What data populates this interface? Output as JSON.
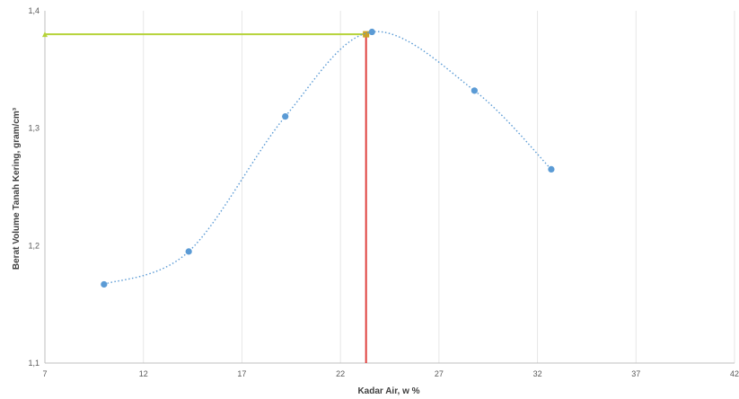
{
  "chart_data": {
    "type": "scatter",
    "title": "",
    "xlabel": "Kadar Air, w %",
    "ylabel": "Berat Volume Tanah Kering, gram/cm³",
    "xlim": [
      7,
      42
    ],
    "ylim": [
      1.1,
      1.4
    ],
    "x_ticks": [
      "7",
      "12",
      "17",
      "22",
      "27",
      "32",
      "37",
      "42"
    ],
    "y_ticks": [
      "1,1",
      "1,2",
      "1,3",
      "1,4"
    ],
    "grid": "vertical",
    "legend": "none",
    "series": [
      {
        "points": [
          {
            "x": 10.0,
            "y": 1.167
          },
          {
            "x": 14.3,
            "y": 1.195
          },
          {
            "x": 19.2,
            "y": 1.31
          },
          {
            "x": 23.6,
            "y": 1.382
          },
          {
            "x": 28.8,
            "y": 1.332
          },
          {
            "x": 32.7,
            "y": 1.265
          }
        ],
        "color": "#5b9bd5",
        "trendline": "dotted smooth curve"
      }
    ],
    "reference_lines": {
      "horizontal": {
        "y": 1.38,
        "x_from": 7,
        "x_to": 23.3,
        "color": "#b6d33a"
      },
      "vertical": {
        "x": 23.3,
        "y_from": 1.1,
        "y_to": 1.38,
        "color": "#e0413f"
      },
      "marker": {
        "x": 23.3,
        "y": 1.38,
        "color": "#c9a227"
      }
    }
  }
}
